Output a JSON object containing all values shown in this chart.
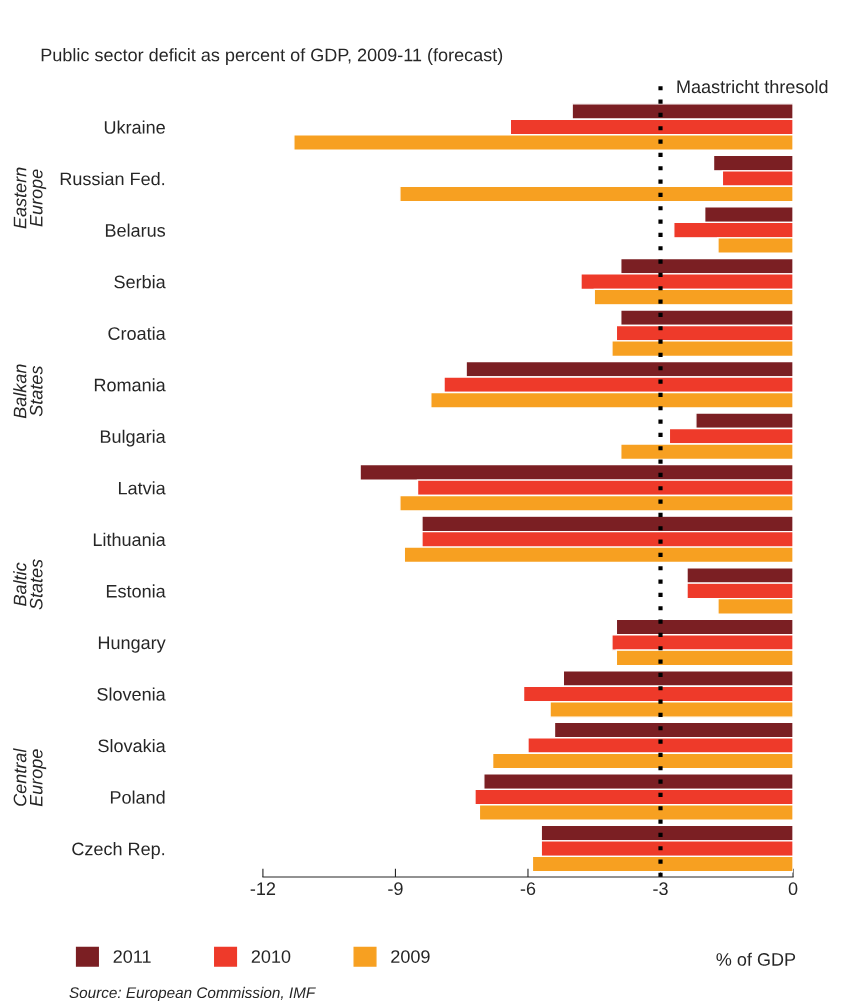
{
  "chart_data": {
    "type": "bar",
    "orientation": "horizontal",
    "title": "Public sector deficit as percent of GDP, 2009-11 (forecast)",
    "xlabel": "% of GDP",
    "categories": [
      "Ukraine",
      "Russian Fed.",
      "Belarus",
      "Serbia",
      "Croatia",
      "Romania",
      "Bulgaria",
      "Latvia",
      "Lithuania",
      "Estonia",
      "Hungary",
      "Slovenia",
      "Slovakia",
      "Poland",
      "Czech Rep."
    ],
    "series": [
      {
        "name": "2011",
        "color": "#7b1f23",
        "values": [
          -5.0,
          -1.8,
          -2.0,
          -3.9,
          -3.9,
          -7.4,
          -2.2,
          -9.8,
          -8.4,
          -2.4,
          -4.0,
          -5.2,
          -5.4,
          -7.0,
          -5.7
        ]
      },
      {
        "name": "2010",
        "color": "#ee3a2a",
        "values": [
          -6.4,
          -1.6,
          -2.7,
          -4.8,
          -4.0,
          -7.9,
          -2.8,
          -8.5,
          -8.4,
          -2.4,
          -4.1,
          -6.1,
          -6.0,
          -7.2,
          -5.7
        ]
      },
      {
        "name": "2009",
        "color": "#f7a021",
        "values": [
          -11.3,
          -8.9,
          -1.7,
          -4.5,
          -4.1,
          -8.2,
          -3.9,
          -8.9,
          -8.8,
          -1.7,
          -4.0,
          -5.5,
          -6.8,
          -7.1,
          -5.9
        ]
      }
    ],
    "xlim": [
      -12,
      0
    ],
    "xticks": [
      -12,
      -9,
      -6,
      -3,
      0
    ],
    "ref_lines": [
      {
        "axis": "x",
        "value": -3,
        "label": "Maastricht thresold",
        "color": "#000000",
        "line_style": "dotted"
      }
    ],
    "annotations": [
      "Eastern Europe",
      "Balkan States",
      "Baltic States",
      "Central Europe",
      "Source: European Commission, IMF"
    ],
    "legend": "bottom left",
    "grid": false
  }
}
